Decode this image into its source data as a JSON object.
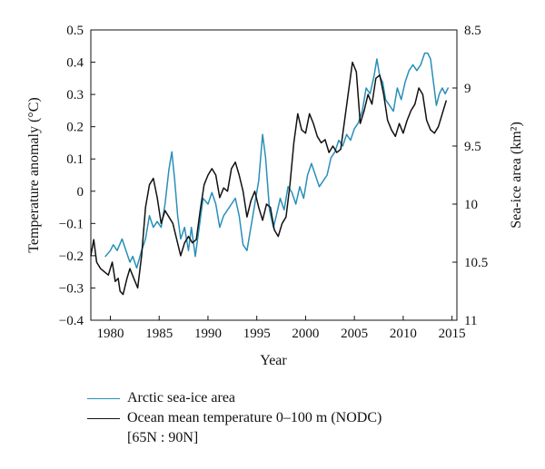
{
  "chart_data": {
    "type": "line",
    "x_label": "Year",
    "y_label_left": "Temperature anomaly (°C)",
    "y_label_right": "Sea-ice area (km²)",
    "xlim": [
      1978,
      2015.5
    ],
    "ylim_left": [
      -0.4,
      0.5
    ],
    "ylim_right_inverted": [
      8.5,
      11
    ],
    "x_ticks": [
      "1980",
      "1985",
      "1990",
      "1995",
      "2000",
      "2005",
      "2010",
      "2015"
    ],
    "y_ticks_left": [
      "0.5",
      "0.4",
      "0.3",
      "0.2",
      "0.1",
      "0",
      "−0.1",
      "−0.2",
      "−0.3",
      "−0.4"
    ],
    "y_ticks_right": [
      "8.5",
      "9",
      "9.5",
      "10",
      "10.5",
      "11"
    ],
    "grid": false,
    "legend_position": "below",
    "series": [
      {
        "name": "Arctic sea-ice area",
        "axis": "right",
        "color": "#2a8fb8",
        "x": [
          1979.5,
          1980,
          1980.3,
          1980.7,
          1981.2,
          1981.6,
          1982,
          1982.3,
          1982.7,
          1983.2,
          1983.6,
          1984,
          1984.4,
          1984.8,
          1985.2,
          1985.6,
          1986,
          1986.3,
          1986.6,
          1986.9,
          1987.2,
          1987.6,
          1988,
          1988.3,
          1988.7,
          1989.1,
          1989.5,
          1990,
          1990.4,
          1990.8,
          1991.2,
          1991.6,
          1992,
          1992.4,
          1992.8,
          1993.2,
          1993.6,
          1994,
          1994.4,
          1994.8,
          1995.2,
          1995.6,
          1995.9,
          1996.3,
          1996.7,
          1997,
          1997.4,
          1997.8,
          1998.2,
          1998.6,
          1999,
          1999.4,
          1999.8,
          2000.2,
          2000.6,
          2001,
          2001.4,
          2001.8,
          2002.2,
          2002.6,
          2003,
          2003.4,
          2003.8,
          2004.2,
          2004.6,
          2005,
          2005.4,
          2005.8,
          2006.2,
          2006.6,
          2007,
          2007.3,
          2007.6,
          2007.9,
          2008.2,
          2008.6,
          2009,
          2009.4,
          2009.8,
          2010.2,
          2010.6,
          2011,
          2011.4,
          2011.8,
          2012.2,
          2012.5,
          2012.8,
          2013.1,
          2013.4,
          2013.7,
          2014,
          2014.3,
          2014.6
        ],
        "y": [
          10.45,
          10.4,
          10.35,
          10.4,
          10.3,
          10.4,
          10.5,
          10.45,
          10.55,
          10.4,
          10.3,
          10.1,
          10.2,
          10.15,
          10.2,
          10.0,
          9.7,
          9.55,
          9.8,
          10.1,
          10.3,
          10.2,
          10.4,
          10.2,
          10.45,
          10.2,
          9.95,
          10.0,
          9.9,
          10.0,
          10.2,
          10.1,
          10.05,
          10.0,
          9.95,
          10.1,
          10.35,
          10.4,
          10.2,
          10.0,
          9.8,
          9.4,
          9.6,
          10.05,
          10.2,
          10.1,
          9.95,
          10.05,
          9.85,
          9.9,
          10.0,
          9.85,
          9.95,
          9.75,
          9.65,
          9.75,
          9.85,
          9.8,
          9.75,
          9.6,
          9.55,
          9.45,
          9.5,
          9.4,
          9.45,
          9.35,
          9.3,
          9.2,
          9.0,
          9.05,
          8.9,
          8.75,
          8.9,
          8.95,
          9.1,
          9.15,
          9.2,
          9.0,
          9.1,
          8.95,
          8.85,
          8.8,
          8.85,
          8.8,
          8.7,
          8.7,
          8.75,
          8.95,
          9.15,
          9.05,
          9.0,
          9.05,
          9.0
        ]
      },
      {
        "name": "Ocean mean temperature 0–100 m (NODC)",
        "name_line2": "[65N : 90N]",
        "axis": "left",
        "color": "#111111",
        "x": [
          1978,
          1978.3,
          1978.6,
          1979,
          1979.4,
          1979.8,
          1980.2,
          1980.5,
          1980.8,
          1981,
          1981.3,
          1981.7,
          1982,
          1982.4,
          1982.8,
          1983.2,
          1983.6,
          1984,
          1984.4,
          1984.8,
          1985.2,
          1985.6,
          1986,
          1986.4,
          1986.8,
          1987.2,
          1987.6,
          1988,
          1988.4,
          1988.8,
          1989.2,
          1989.6,
          1990,
          1990.4,
          1990.8,
          1991.2,
          1991.6,
          1992,
          1992.4,
          1992.8,
          1993.2,
          1993.6,
          1994,
          1994.4,
          1994.8,
          1995.2,
          1995.6,
          1996,
          1996.4,
          1996.8,
          1997.2,
          1997.6,
          1998,
          1998.4,
          1998.8,
          1999.2,
          1999.6,
          2000,
          2000.4,
          2000.8,
          2001.2,
          2001.6,
          2002,
          2002.4,
          2002.8,
          2003.2,
          2003.6,
          2004,
          2004.4,
          2004.8,
          2005.2,
          2005.6,
          2006,
          2006.4,
          2006.8,
          2007.2,
          2007.6,
          2008,
          2008.4,
          2008.8,
          2009.2,
          2009.6,
          2010,
          2010.4,
          2010.8,
          2011.2,
          2011.6,
          2012,
          2012.4,
          2012.8,
          2013.2,
          2013.6,
          2014,
          2014.4
        ],
        "y": [
          -0.2,
          -0.15,
          -0.22,
          -0.24,
          -0.25,
          -0.26,
          -0.22,
          -0.28,
          -0.27,
          -0.31,
          -0.32,
          -0.27,
          -0.24,
          -0.27,
          -0.3,
          -0.2,
          -0.05,
          0.02,
          0.04,
          -0.02,
          -0.1,
          -0.06,
          -0.08,
          -0.1,
          -0.15,
          -0.2,
          -0.16,
          -0.14,
          -0.16,
          -0.15,
          -0.06,
          0.02,
          0.05,
          0.07,
          0.05,
          -0.02,
          0.01,
          0.0,
          0.07,
          0.09,
          0.05,
          0.0,
          -0.08,
          -0.03,
          0.0,
          -0.05,
          -0.09,
          -0.04,
          -0.05,
          -0.12,
          -0.14,
          -0.1,
          -0.08,
          0.02,
          0.15,
          0.24,
          0.19,
          0.18,
          0.24,
          0.21,
          0.17,
          0.15,
          0.16,
          0.12,
          0.14,
          0.12,
          0.13,
          0.22,
          0.31,
          0.4,
          0.37,
          0.21,
          0.25,
          0.3,
          0.27,
          0.35,
          0.36,
          0.3,
          0.22,
          0.19,
          0.17,
          0.21,
          0.18,
          0.22,
          0.25,
          0.27,
          0.32,
          0.3,
          0.22,
          0.19,
          0.18,
          0.2,
          0.24,
          0.28
        ]
      }
    ]
  }
}
